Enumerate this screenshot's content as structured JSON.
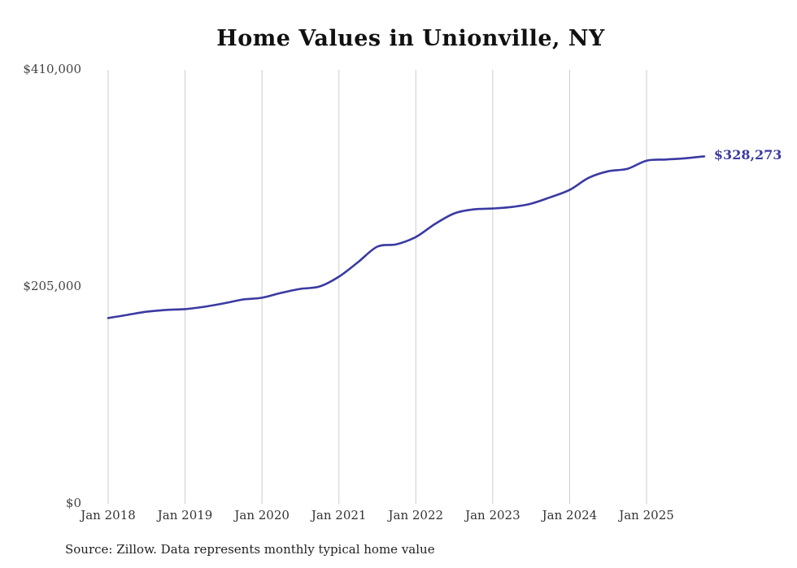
{
  "page": {
    "background": "#ffffff"
  },
  "chart_data": {
    "type": "line",
    "title": "Home Values in Unionville, NY",
    "source": "Source: Zillow. Data represents monthly typical home value",
    "legend": "none",
    "grid": "vertical-only",
    "gridline_color": "#cccccc",
    "line_color": "#3a3aa2",
    "ylim": [
      0,
      410000
    ],
    "xlim": [
      2018.0,
      2025.95
    ],
    "y_ticks": [
      {
        "value": 0,
        "label": "$0"
      },
      {
        "value": 205000,
        "label": "$205,000"
      },
      {
        "value": 410000,
        "label": "$410,000"
      }
    ],
    "x_ticks": [
      {
        "year": 2018,
        "label": "Jan 2018"
      },
      {
        "year": 2019,
        "label": "Jan 2019"
      },
      {
        "year": 2020,
        "label": "Jan 2020"
      },
      {
        "year": 2021,
        "label": "Jan 2021"
      },
      {
        "year": 2022,
        "label": "Jan 2022"
      },
      {
        "year": 2023,
        "label": "Jan 2023"
      },
      {
        "year": 2024,
        "label": "Jan 2024"
      },
      {
        "year": 2025,
        "label": "Jan 2025"
      }
    ],
    "series": [
      {
        "name": "Typical home value",
        "x": [
          2018.0,
          2018.25,
          2018.5,
          2018.75,
          2019.0,
          2019.25,
          2019.5,
          2019.75,
          2020.0,
          2020.25,
          2020.5,
          2020.75,
          2021.0,
          2021.25,
          2021.5,
          2021.75,
          2022.0,
          2022.25,
          2022.5,
          2022.75,
          2023.0,
          2023.25,
          2023.5,
          2023.75,
          2024.0,
          2024.25,
          2024.5,
          2024.75,
          2025.0,
          2025.25,
          2025.5,
          2025.75
        ],
        "values": [
          175500,
          178500,
          181500,
          183200,
          184000,
          186200,
          189300,
          193000,
          194700,
          199300,
          203100,
          205400,
          214600,
          228400,
          243000,
          245200,
          252100,
          264400,
          274400,
          278200,
          279000,
          280500,
          283600,
          289700,
          296600,
          308100,
          314200,
          316500,
          324200,
          325300,
          326500,
          328273
        ]
      }
    ],
    "latest_value": 328273,
    "end_label": "$328,273"
  }
}
